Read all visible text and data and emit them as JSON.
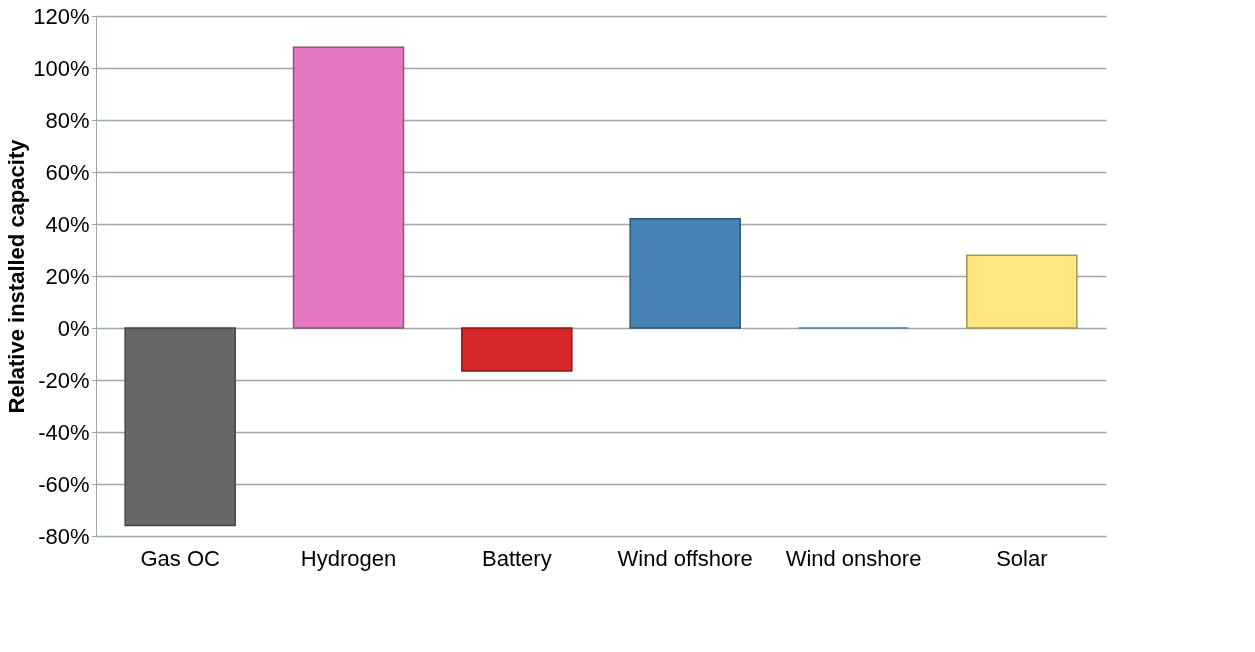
{
  "chart_data": {
    "type": "bar",
    "ylabel": "Relative installed capacity",
    "categories": [
      "Gas OC",
      "Hydrogen",
      "Battery",
      "Wind offshore",
      "Wind onshore",
      "Solar"
    ],
    "values": [
      -76,
      108,
      -16.5,
      42,
      0,
      28
    ],
    "colors": [
      "#686868",
      "#e377c2",
      "#d62728",
      "#4682b4",
      "#4682b4",
      "#ffe680"
    ],
    "ylim": [
      -80,
      120
    ],
    "yticks": [
      {
        "value": -80,
        "label": "-80%"
      },
      {
        "value": -60,
        "label": "-60%"
      },
      {
        "value": -40,
        "label": "-40%"
      },
      {
        "value": -20,
        "label": "-20%"
      },
      {
        "value": 0,
        "label": "0%"
      },
      {
        "value": 20,
        "label": "20%"
      },
      {
        "value": 40,
        "label": "40%"
      },
      {
        "value": 60,
        "label": "60%"
      },
      {
        "value": 80,
        "label": "80%"
      },
      {
        "value": 100,
        "label": "100%"
      },
      {
        "value": 120,
        "label": "120%"
      }
    ],
    "grid": "y"
  }
}
